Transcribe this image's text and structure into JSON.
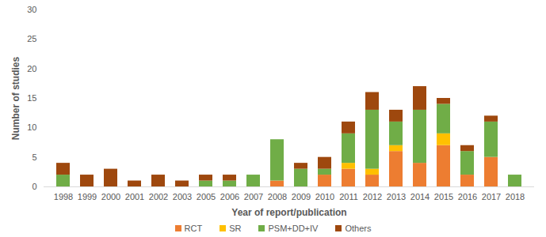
{
  "chart_data": {
    "type": "bar",
    "stacked": true,
    "grid": false,
    "legend": "bottom",
    "x_label": "Year of report/publication",
    "y_label": "Number of studies",
    "categories": [
      "1998",
      "1999",
      "2000",
      "2001",
      "2002",
      "2003",
      "2005",
      "2006",
      "2007",
      "2008",
      "2009",
      "2010",
      "2011",
      "2012",
      "2013",
      "2014",
      "2015",
      "2016",
      "2017",
      "2018"
    ],
    "ylim": [
      0,
      30
    ],
    "yticks": [
      0,
      5,
      10,
      15,
      20,
      25,
      30
    ],
    "series": [
      {
        "name": "RCT",
        "color": "#ED7D31",
        "values": [
          0,
          0,
          0,
          0,
          0,
          0,
          0,
          0,
          0,
          1,
          0,
          2,
          3,
          2,
          6,
          4,
          7,
          2,
          5,
          0
        ]
      },
      {
        "name": "SR",
        "color": "#FFC000",
        "values": [
          0,
          0,
          0,
          0,
          0,
          0,
          0,
          0,
          0,
          0,
          0,
          0,
          1,
          1,
          1,
          0,
          2,
          0,
          0,
          0
        ]
      },
      {
        "name": "PSM+DD+IV",
        "color": "#70AD47",
        "values": [
          2,
          0,
          0,
          0,
          0,
          0,
          1,
          1,
          2,
          7,
          3,
          1,
          5,
          10,
          4,
          9,
          5,
          4,
          6,
          2
        ]
      },
      {
        "name": "Others",
        "color": "#9E480E",
        "values": [
          2,
          2,
          3,
          1,
          2,
          1,
          1,
          1,
          0,
          0,
          1,
          2,
          2,
          3,
          2,
          4,
          1,
          1,
          1,
          0
        ]
      }
    ]
  }
}
